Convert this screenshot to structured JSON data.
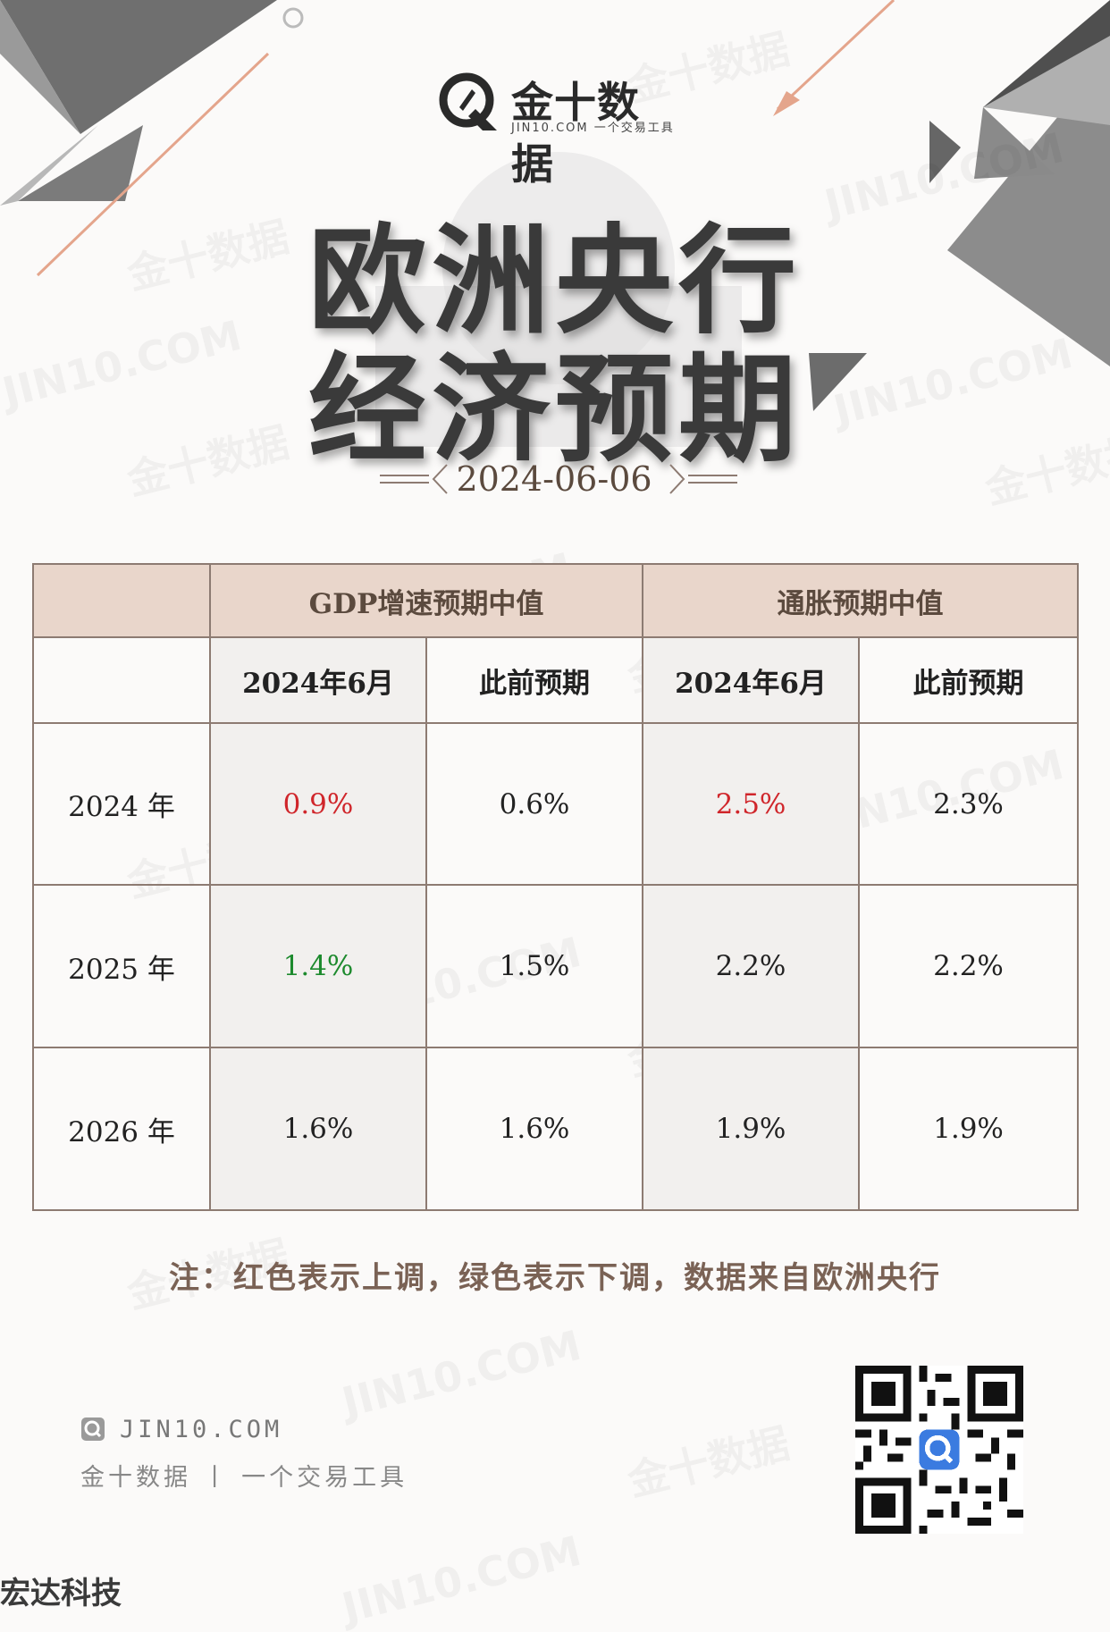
{
  "brand": {
    "name": "金十数据",
    "tagline": "JIN10.COM 一个交易工具"
  },
  "watermark": {
    "text_cn": "金十数据",
    "text_en": "JIN10.COM"
  },
  "title": {
    "line1": "欧洲央行",
    "line2": "经济预期"
  },
  "date": "2024-06-06",
  "table": {
    "groups": [
      "GDP增速预期中值",
      "通胀预期中值"
    ],
    "subheaders": [
      "2024年6月",
      "此前预期",
      "2024年6月",
      "此前预期"
    ],
    "rows": [
      {
        "label": "2024 年",
        "cells": [
          "0.9%",
          "0.6%",
          "2.5%",
          "2.3%"
        ]
      },
      {
        "label": "2025 年",
        "cells": [
          "1.4%",
          "1.5%",
          "2.2%",
          "2.2%"
        ]
      },
      {
        "label": "2026 年",
        "cells": [
          "1.6%",
          "1.6%",
          "1.9%",
          "1.9%"
        ]
      }
    ],
    "colors": {
      "up": "#d0262b",
      "down": "#1d8a2d"
    }
  },
  "note": "注：红色表示上调，绿色表示下调，数据来自欧洲央行",
  "footer": {
    "url": "JIN10.COM",
    "tagline": "金十数据 丨 一个交易工具"
  },
  "corner_text": "宏达科技"
}
